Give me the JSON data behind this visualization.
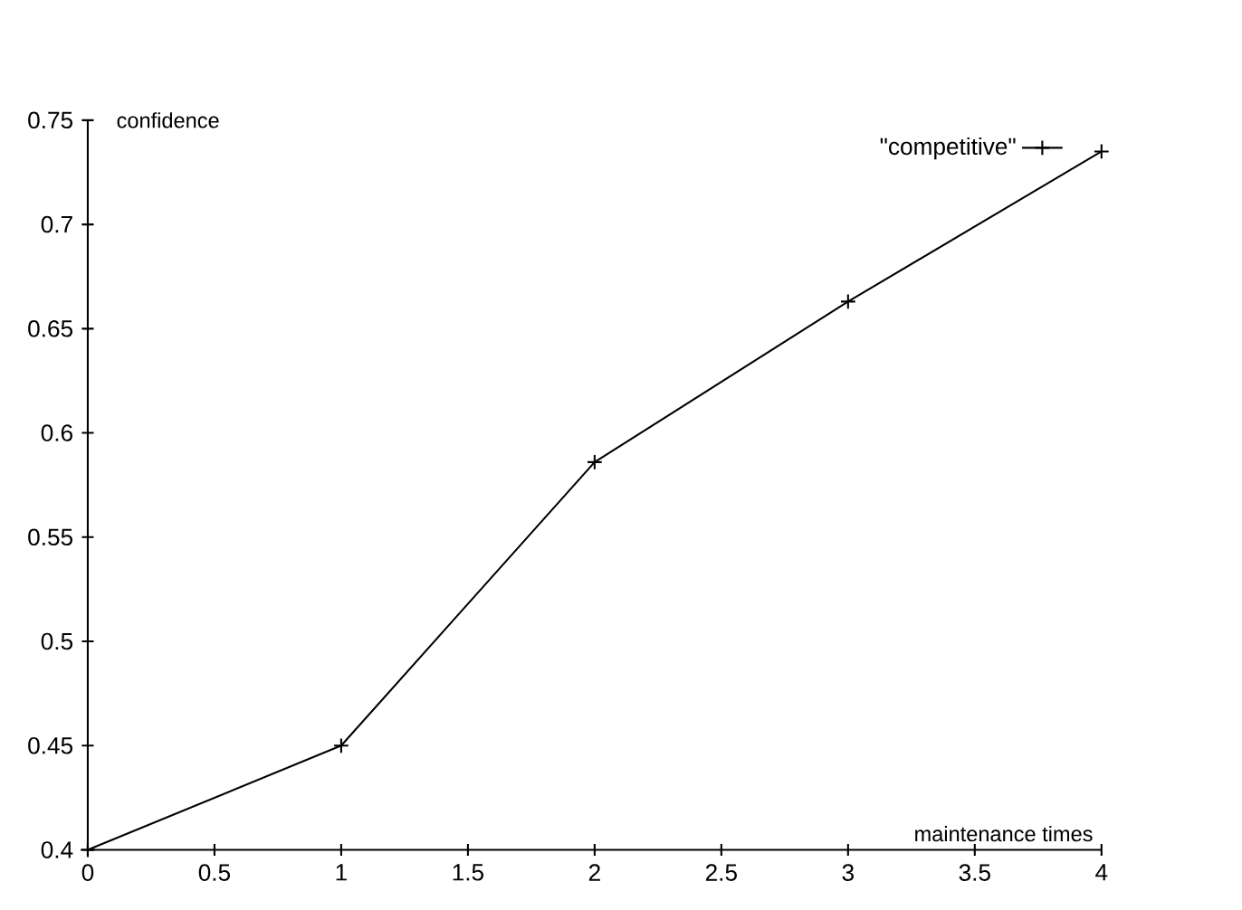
{
  "chart_data": {
    "type": "line",
    "xlabel": "maintenance times",
    "ylabel": "confidence",
    "x": [
      0,
      1,
      2,
      3,
      4
    ],
    "series": [
      {
        "name": "\"competitive\"",
        "color": "#000000",
        "values": [
          0.4,
          0.45,
          0.586,
          0.663,
          0.735
        ]
      }
    ],
    "xlim": [
      0,
      4
    ],
    "ylim": [
      0.4,
      0.75
    ],
    "xticks": [
      0,
      0.5,
      1,
      1.5,
      2,
      2.5,
      3,
      3.5,
      4
    ],
    "yticks": [
      0.4,
      0.45,
      0.5,
      0.55,
      0.6,
      0.65,
      0.7,
      0.75
    ],
    "legend": "top right",
    "marker": "cross",
    "line_style": "solid",
    "grid": false
  }
}
